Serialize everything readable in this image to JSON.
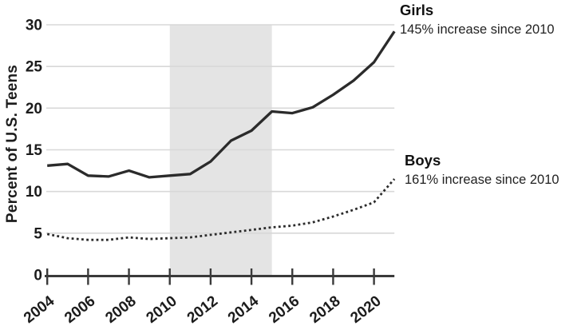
{
  "chart_data": {
    "type": "line",
    "title": "",
    "xlabel": "",
    "ylabel": "Percent of U.S. Teens",
    "x": [
      2004,
      2005,
      2006,
      2007,
      2008,
      2009,
      2010,
      2011,
      2012,
      2013,
      2014,
      2015,
      2016,
      2017,
      2018,
      2019,
      2020,
      2021
    ],
    "x_ticks": [
      2004,
      2006,
      2008,
      2010,
      2012,
      2014,
      2016,
      2018,
      2020
    ],
    "y_ticks": [
      0,
      5,
      10,
      15,
      20,
      25,
      30
    ],
    "xlim": [
      2004,
      2021
    ],
    "ylim": [
      0,
      30
    ],
    "grid": true,
    "legend_position": "right-annotations",
    "shaded_region": {
      "from": 2010,
      "to": 2015,
      "color": "#e4e4e4"
    },
    "series": [
      {
        "name": "Girls",
        "line_style": "solid",
        "values": [
          13.1,
          13.3,
          11.9,
          11.8,
          12.5,
          11.7,
          11.9,
          12.1,
          13.6,
          16.1,
          17.3,
          19.6,
          19.4,
          20.1,
          21.6,
          23.3,
          25.5,
          29.2
        ]
      },
      {
        "name": "Boys",
        "line_style": "dotted",
        "values": [
          4.9,
          4.4,
          4.2,
          4.2,
          4.5,
          4.3,
          4.4,
          4.5,
          4.8,
          5.1,
          5.4,
          5.7,
          5.9,
          6.3,
          7.0,
          7.8,
          8.7,
          11.5
        ]
      }
    ],
    "colors": {
      "line": "#2b2b2b",
      "grid": "#d8d8d8",
      "axis": "#3a3a3a",
      "tick_text": "#1c1c1c",
      "shade": "#e4e4e4",
      "background": "#ffffff"
    }
  },
  "annotations": {
    "girls": {
      "title": "Girls",
      "subtitle": "145% increase since 2010"
    },
    "boys": {
      "title": "Boys",
      "subtitle": "161% increase since 2010"
    }
  },
  "axis": {
    "y_label": "Percent of U.S. Teens"
  }
}
